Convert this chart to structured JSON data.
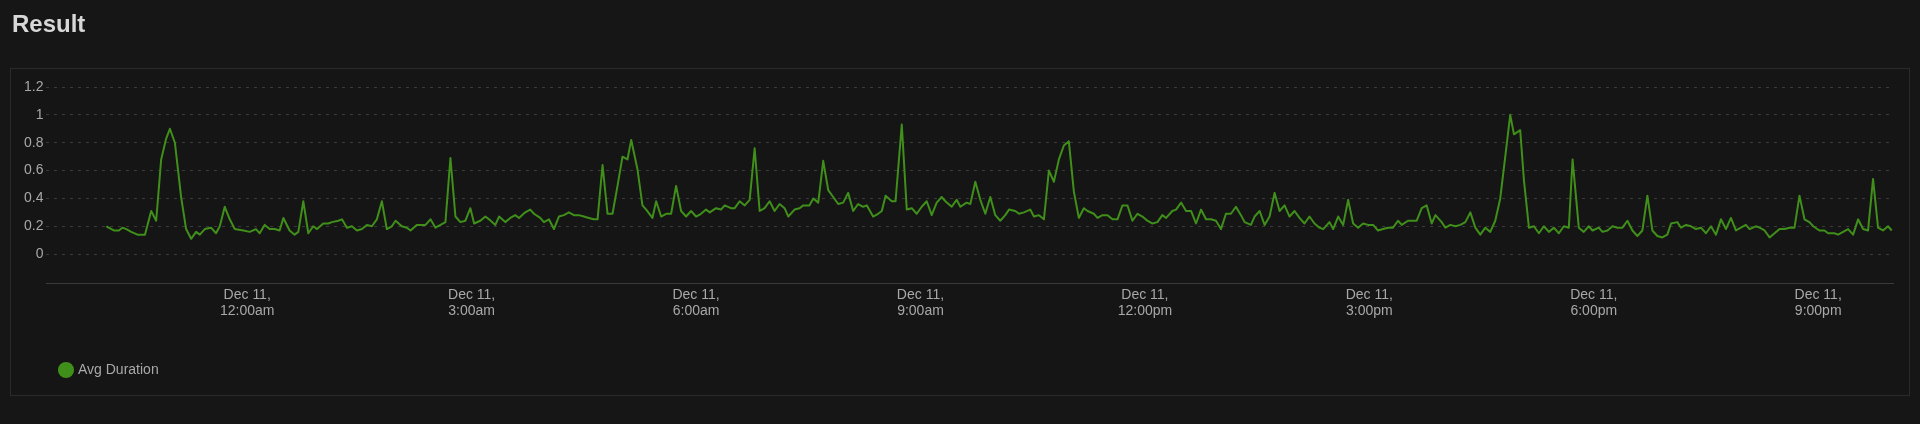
{
  "chart_data": {
    "type": "line",
    "title": "Result",
    "xlim": [
      "--12-10T21:19",
      "--12-11T22:00"
    ],
    "xticks": [
      {
        "value": "--12-11T00:00",
        "label": "Dec 11,\n12:00am"
      },
      {
        "value": "--12-11T03:00",
        "label": "Dec 11,\n3:00am"
      },
      {
        "value": "--12-11T06:00",
        "label": "Dec 11,\n6:00am"
      },
      {
        "value": "--12-11T09:00",
        "label": "Dec 11,\n9:00am"
      },
      {
        "value": "--12-11T12:00",
        "label": "Dec 11,\n12:00pm"
      },
      {
        "value": "--12-11T15:00",
        "label": "Dec 11,\n3:00pm"
      },
      {
        "value": "--12-11T18:00",
        "label": "Dec 11,\n6:00pm"
      },
      {
        "value": "--12-11T21:00",
        "label": "Dec 11,\n9:00pm"
      }
    ],
    "ylim": [
      -0.21,
      1.2
    ],
    "yticks": [
      0,
      0.2,
      0.4,
      0.6,
      0.8,
      1,
      1.2
    ],
    "grid": "y",
    "legend": "bottom left",
    "marker": "none",
    "line_style": "solid",
    "series": [
      {
        "name": "Avg Duration",
        "color": "#3f8f1a",
        "x": [
          "--12-10T22:07",
          "--12-10T22:13",
          "--12-10T22:17",
          "--12-10T22:20",
          "--12-10T22:23",
          "--12-10T22:27",
          "--12-10T22:32",
          "--12-10T22:38",
          "--12-10T22:43",
          "--12-10T22:47",
          "--12-10T22:51",
          "--12-10T22:55",
          "--12-10T22:58",
          "--12-10T23:02",
          "--12-10T23:07",
          "--12-10T23:11",
          "--12-10T23:15",
          "--12-10T23:19",
          "--12-10T23:22",
          "--12-10T23:26",
          "--12-10T23:31",
          "--12-10T23:35",
          "--12-10T23:38",
          "--12-10T23:42",
          "--12-10T23:46",
          "--12-10T23:50",
          "--12-10T23:57",
          "--12-11T00:02",
          "--12-11T00:07",
          "--12-11T00:10",
          "--12-11T00:14",
          "--12-11T00:18",
          "--12-11T00:22",
          "--12-11T00:26",
          "--12-11T00:29",
          "--12-11T00:34",
          "--12-11T00:38",
          "--12-11T00:41",
          "--12-11T00:45",
          "--12-11T00:49",
          "--12-11T00:53",
          "--12-11T00:56",
          "--12-11T01:01",
          "--12-11T01:05",
          "--12-11T01:08",
          "--12-11T01:13",
          "--12-11T01:16",
          "--12-11T01:20",
          "--12-11T01:24",
          "--12-11T01:28",
          "--12-11T01:32",
          "--12-11T01:36",
          "--12-11T01:40",
          "--12-11T01:44",
          "--12-11T01:48",
          "--12-11T01:52",
          "--12-11T01:56",
          "--12-11T01:59",
          "--12-11T02:04",
          "--12-11T02:08",
          "--12-11T02:11",
          "--12-11T02:16",
          "--12-11T02:19",
          "--12-11T02:23",
          "--12-11T02:27",
          "--12-11T02:31",
          "--12-11T02:35",
          "--12-11T02:39",
          "--12-11T02:43",
          "--12-11T02:47",
          "--12-11T02:51",
          "--12-11T02:55",
          "--12-11T02:59",
          "--12-11T03:02",
          "--12-11T03:07",
          "--12-11T03:11",
          "--12-11T03:14",
          "--12-11T03:19",
          "--12-11T03:22",
          "--12-11T03:27",
          "--12-11T03:31",
          "--12-11T03:35",
          "--12-11T03:38",
          "--12-11T03:43",
          "--12-11T03:47",
          "--12-11T03:50",
          "--12-11T03:55",
          "--12-11T03:58",
          "--12-11T04:02",
          "--12-11T04:06",
          "--12-11T04:10",
          "--12-11T04:14",
          "--12-11T04:18",
          "--12-11T04:22",
          "--12-11T04:26",
          "--12-11T04:30",
          "--12-11T04:34",
          "--12-11T04:38",
          "--12-11T04:41",
          "--12-11T04:45",
          "--12-11T04:49",
          "--12-11T04:53",
          "--12-11T04:57",
          "--12-11T05:01",
          "--12-11T05:05",
          "--12-11T05:08",
          "--12-11T05:13",
          "--12-11T05:17",
          "--12-11T05:20",
          "--12-11T05:25",
          "--12-11T05:28",
          "--12-11T05:32",
          "--12-11T05:36",
          "--12-11T05:40",
          "--12-11T05:44",
          "--12-11T05:48",
          "--12-11T05:52",
          "--12-11T05:56",
          "--12-11T06:00",
          "--12-11T06:04",
          "--12-11T06:08",
          "--12-11T06:11",
          "--12-11T06:16",
          "--12-11T06:20",
          "--12-11T06:23",
          "--12-11T06:28",
          "--12-11T06:31",
          "--12-11T06:35",
          "--12-11T06:39",
          "--12-11T06:43",
          "--12-11T06:47",
          "--12-11T06:51",
          "--12-11T06:55",
          "--12-11T06:59",
          "--12-11T07:03",
          "--12-11T07:07",
          "--12-11T07:11",
          "--12-11T07:14",
          "--12-11T07:19",
          "--12-11T07:23",
          "--12-11T07:26",
          "--12-11T07:31",
          "--12-11T07:34",
          "--12-11T07:38",
          "--12-11T07:42",
          "--12-11T07:46",
          "--12-11T07:50",
          "--12-11T07:54",
          "--12-11T07:58",
          "--12-11T08:02",
          "--12-11T08:06",
          "--12-11T08:10",
          "--12-11T08:14",
          "--12-11T08:17",
          "--12-11T08:22",
          "--12-11T08:26",
          "--12-11T08:29",
          "--12-11T08:32",
          "--12-11T08:37",
          "--12-11T08:40",
          "--12-11T08:45",
          "--12-11T08:49",
          "--12-11T08:53",
          "--12-11T08:57",
          "--12-11T09:01",
          "--12-11T09:05",
          "--12-11T09:09",
          "--12-11T09:13",
          "--12-11T09:17",
          "--12-11T09:20",
          "--12-11T09:25",
          "--12-11T09:29",
          "--12-11T09:32",
          "--12-11T09:37",
          "--12-11T09:40",
          "--12-11T09:44",
          "--12-11T09:48",
          "--12-11T09:52",
          "--12-11T09:56",
          "--12-11T10:00",
          "--12-11T10:04",
          "--12-11T10:08",
          "--12-11T10:11",
          "--12-11T10:16",
          "--12-11T10:19",
          "--12-11T10:23",
          "--12-11T10:28",
          "--12-11T10:31",
          "--12-11T10:35",
          "--12-11T10:39",
          "--12-11T10:43",
          "--12-11T10:47",
          "--12-11T10:51",
          "--12-11T10:55",
          "--12-11T10:59",
          "--12-11T11:03",
          "--12-11T11:07",
          "--12-11T11:11",
          "--12-11T11:14",
          "--12-11T11:19",
          "--12-11T11:22",
          "--12-11T11:26",
          "--12-11T11:30",
          "--12-11T11:34",
          "--12-11T11:38",
          "--12-11T11:42",
          "--12-11T11:46",
          "--12-11T11:50",
          "--12-11T11:54",
          "--12-11T11:58",
          "--12-11T12:02",
          "--12-11T12:06",
          "--12-11T12:10",
          "--12-11T12:14",
          "--12-11T12:17",
          "--12-11T12:22",
          "--12-11T12:25",
          "--12-11T12:29",
          "--12-11T12:33",
          "--12-11T12:37",
          "--12-11T12:41",
          "--12-11T12:45",
          "--12-11T12:49",
          "--12-11T12:53",
          "--12-11T12:57",
          "--12-11T13:01",
          "--12-11T13:05",
          "--12-11T13:09",
          "--12-11T13:13",
          "--12-11T13:17",
          "--12-11T13:20",
          "--12-11T13:25",
          "--12-11T13:28",
          "--12-11T13:32",
          "--12-11T13:36",
          "--12-11T13:40",
          "--12-11T13:44",
          "--12-11T13:48",
          "--12-11T13:52",
          "--12-11T13:56",
          "--12-11T14:00",
          "--12-11T14:04",
          "--12-11T14:08",
          "--12-11T14:12",
          "--12-11T14:16",
          "--12-11T14:20",
          "--12-11T14:23",
          "--12-11T14:28",
          "--12-11T14:31",
          "--12-11T14:35",
          "--12-11T14:39",
          "--12-11T14:43",
          "--12-11T14:47",
          "--12-11T14:51",
          "--12-11T14:55",
          "--12-11T14:59",
          "--12-11T15:03",
          "--12-11T15:07",
          "--12-11T15:11",
          "--12-11T15:15",
          "--12-11T15:19",
          "--12-11T15:23",
          "--12-11T15:26",
          "--12-11T15:31",
          "--12-11T15:34",
          "--12-11T15:38",
          "--12-11T15:42",
          "--12-11T15:46",
          "--12-11T15:50",
          "--12-11T15:53",
          "--12-11T15:58",
          "--12-11T16:01",
          "--12-11T16:05",
          "--12-11T16:09",
          "--12-11T16:13",
          "--12-11T16:17",
          "--12-11T16:21",
          "--12-11T16:25",
          "--12-11T16:29",
          "--12-11T16:33",
          "--12-11T16:37",
          "--12-11T16:41",
          "--12-11T16:45",
          "--12-11T16:49",
          "--12-11T16:53",
          "--12-11T16:56",
          "--12-11T17:01",
          "--12-11T17:04",
          "--12-11T17:08",
          "--12-11T17:12",
          "--12-11T17:16",
          "--12-11T17:20",
          "--12-11T17:24",
          "--12-11T17:28",
          "--12-11T17:32",
          "--12-11T17:36",
          "--12-11T17:40",
          "--12-11T17:43",
          "--12-11T17:48",
          "--12-11T17:52",
          "--12-11T17:56",
          "--12-11T17:59",
          "--12-11T18:04",
          "--12-11T18:07",
          "--12-11T18:11",
          "--12-11T18:15",
          "--12-11T18:19",
          "--12-11T18:23",
          "--12-11T18:27",
          "--12-11T18:31",
          "--12-11T18:35",
          "--12-11T18:39",
          "--12-11T18:43",
          "--12-11T18:47",
          "--12-11T18:51",
          "--12-11T18:55",
          "--12-11T18:59",
          "--12-11T19:02",
          "--12-11T19:07",
          "--12-11T19:10",
          "--12-11T19:14",
          "--12-11T19:18",
          "--12-11T19:22",
          "--12-11T19:26",
          "--12-11T19:30",
          "--12-11T19:34",
          "--12-11T19:38",
          "--12-11T19:42",
          "--12-11T19:46",
          "--12-11T19:50",
          "--12-11T19:54",
          "--12-11T19:58",
          "--12-11T20:02",
          "--12-11T20:05",
          "--12-11T20:10",
          "--12-11T20:13",
          "--12-11T20:17",
          "--12-11T20:21",
          "--12-11T20:25",
          "--12-11T20:29",
          "--12-11T20:33",
          "--12-11T20:37",
          "--12-11T20:41",
          "--12-11T20:45",
          "--12-11T20:49",
          "--12-11T20:53",
          "--12-11T20:56",
          "--12-11T21:01",
          "--12-11T21:05",
          "--12-11T21:08",
          "--12-11T21:13",
          "--12-11T21:16",
          "--12-11T21:20",
          "--12-11T21:24",
          "--12-11T21:28",
          "--12-11T21:32",
          "--12-11T21:36",
          "--12-11T21:40",
          "--12-11T21:44",
          "--12-11T21:48",
          "--12-11T21:52",
          "--12-11T21:56",
          "--12-11T21:59"
        ],
        "values": [
          0.2,
          0.17,
          0.17,
          0.19,
          0.18,
          0.16,
          0.14,
          0.14,
          0.31,
          0.24,
          0.68,
          0.83,
          0.9,
          0.8,
          0.41,
          0.18,
          0.11,
          0.16,
          0.14,
          0.18,
          0.19,
          0.15,
          0.2,
          0.34,
          0.25,
          0.18,
          0.17,
          0.16,
          0.18,
          0.15,
          0.21,
          0.18,
          0.18,
          0.17,
          0.26,
          0.17,
          0.14,
          0.16,
          0.38,
          0.15,
          0.2,
          0.18,
          0.22,
          0.22,
          0.23,
          0.24,
          0.25,
          0.19,
          0.2,
          0.17,
          0.18,
          0.21,
          0.2,
          0.25,
          0.38,
          0.18,
          0.2,
          0.24,
          0.2,
          0.19,
          0.17,
          0.21,
          0.21,
          0.21,
          0.25,
          0.19,
          0.21,
          0.23,
          0.69,
          0.27,
          0.23,
          0.24,
          0.33,
          0.22,
          0.24,
          0.27,
          0.25,
          0.21,
          0.27,
          0.23,
          0.26,
          0.28,
          0.26,
          0.3,
          0.32,
          0.29,
          0.26,
          0.23,
          0.25,
          0.18,
          0.27,
          0.28,
          0.3,
          0.28,
          0.28,
          0.27,
          0.26,
          0.25,
          0.25,
          0.64,
          0.29,
          0.29,
          0.49,
          0.7,
          0.68,
          0.82,
          0.61,
          0.35,
          0.32,
          0.26,
          0.38,
          0.27,
          0.29,
          0.29,
          0.49,
          0.31,
          0.27,
          0.31,
          0.27,
          0.29,
          0.32,
          0.3,
          0.33,
          0.32,
          0.35,
          0.33,
          0.33,
          0.38,
          0.35,
          0.39,
          0.76,
          0.31,
          0.33,
          0.38,
          0.31,
          0.36,
          0.33,
          0.27,
          0.32,
          0.33,
          0.35,
          0.35,
          0.4,
          0.37,
          0.67,
          0.46,
          0.41,
          0.36,
          0.37,
          0.44,
          0.31,
          0.36,
          0.34,
          0.35,
          0.27,
          0.29,
          0.31,
          0.42,
          0.38,
          0.38,
          0.93,
          0.32,
          0.33,
          0.29,
          0.34,
          0.38,
          0.28,
          0.37,
          0.41,
          0.38,
          0.34,
          0.39,
          0.34,
          0.37,
          0.36,
          0.52,
          0.39,
          0.29,
          0.41,
          0.28,
          0.24,
          0.28,
          0.32,
          0.31,
          0.29,
          0.3,
          0.32,
          0.27,
          0.28,
          0.25,
          0.6,
          0.52,
          0.68,
          0.78,
          0.81,
          0.45,
          0.26,
          0.33,
          0.31,
          0.29,
          0.26,
          0.28,
          0.28,
          0.25,
          0.25,
          0.35,
          0.35,
          0.24,
          0.29,
          0.27,
          0.24,
          0.22,
          0.23,
          0.28,
          0.26,
          0.31,
          0.32,
          0.37,
          0.31,
          0.31,
          0.22,
          0.32,
          0.25,
          0.25,
          0.24,
          0.18,
          0.29,
          0.29,
          0.34,
          0.28,
          0.23,
          0.21,
          0.27,
          0.31,
          0.21,
          0.27,
          0.44,
          0.31,
          0.35,
          0.27,
          0.31,
          0.26,
          0.22,
          0.27,
          0.22,
          0.19,
          0.18,
          0.23,
          0.18,
          0.27,
          0.21,
          0.39,
          0.22,
          0.19,
          0.22,
          0.21,
          0.21,
          0.17,
          0.18,
          0.19,
          0.19,
          0.24,
          0.21,
          0.24,
          0.24,
          0.24,
          0.33,
          0.35,
          0.22,
          0.28,
          0.23,
          0.19,
          0.21,
          0.2,
          0.21,
          0.23,
          0.3,
          0.19,
          0.14,
          0.19,
          0.16,
          0.24,
          0.4,
          0.7,
          1.0,
          0.86,
          0.89,
          0.53,
          0.19,
          0.2,
          0.15,
          0.2,
          0.16,
          0.19,
          0.15,
          0.2,
          0.19,
          0.68,
          0.19,
          0.16,
          0.2,
          0.17,
          0.19,
          0.16,
          0.17,
          0.2,
          0.19,
          0.19,
          0.24,
          0.17,
          0.13,
          0.17,
          0.42,
          0.17,
          0.13,
          0.12,
          0.14,
          0.22,
          0.23,
          0.19,
          0.21,
          0.2,
          0.18,
          0.19,
          0.15,
          0.2,
          0.14,
          0.25,
          0.18,
          0.26,
          0.17,
          0.19,
          0.21,
          0.18,
          0.2,
          0.19,
          0.17,
          0.12,
          0.15,
          0.18,
          0.18,
          0.19,
          0.19,
          0.42,
          0.25,
          0.23,
          0.2,
          0.17,
          0.17,
          0.15,
          0.15,
          0.14,
          0.16,
          0.18,
          0.14,
          0.25,
          0.18,
          0.17,
          0.54,
          0.19,
          0.17,
          0.2,
          0.17
        ]
      }
    ]
  }
}
